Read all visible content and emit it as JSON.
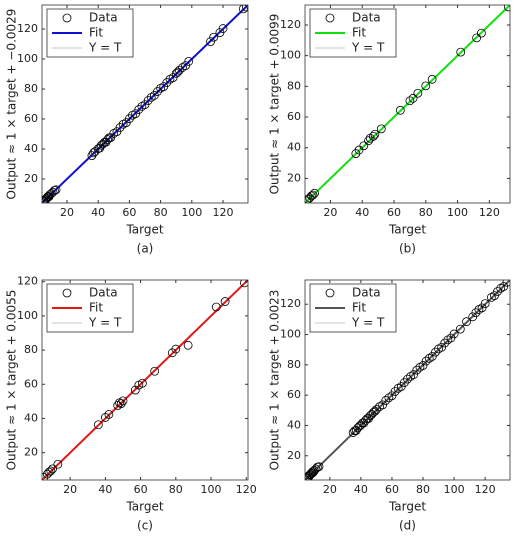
{
  "chart_data": [
    {
      "type": "scatter",
      "caption": "(a)",
      "xlabel": "Target",
      "ylabel": "Output ≈ 1 × target + −0.0029",
      "xlim": [
        4,
        136
      ],
      "ylim": [
        4,
        136
      ],
      "xticks": [
        20,
        40,
        60,
        80,
        100,
        120
      ],
      "yticks": [
        20,
        40,
        60,
        80,
        100,
        120
      ],
      "series": [
        {
          "name": "Data",
          "color": "#000000",
          "x": [
            5,
            5.5,
            6,
            6.5,
            7,
            7.5,
            8,
            8.5,
            9,
            10,
            11,
            12,
            13,
            36,
            37,
            38,
            40,
            41,
            42,
            43,
            44,
            45,
            46,
            47,
            48,
            50,
            52,
            54,
            56,
            58,
            60,
            62,
            64,
            66,
            68,
            70,
            72,
            74,
            76,
            78,
            80,
            82,
            84,
            86,
            88,
            90,
            91,
            92,
            94,
            96,
            98,
            112,
            114,
            118,
            120,
            133,
            135
          ],
          "y": [
            5.3,
            5.2,
            6.4,
            6.3,
            7.2,
            7.9,
            8.4,
            8.2,
            9.5,
            10.3,
            11.2,
            12.4,
            12.8,
            35.6,
            37.4,
            38.3,
            40.2,
            40.6,
            42.5,
            43.3,
            44.4,
            44.6,
            46.3,
            47.5,
            47.6,
            50.4,
            51.6,
            54.3,
            56.5,
            57.6,
            60.2,
            62.5,
            63.6,
            66.3,
            68.4,
            69.6,
            72.3,
            74.4,
            75.7,
            78.3,
            80.5,
            81.6,
            84.3,
            86.5,
            87.6,
            90.4,
            91.3,
            92.5,
            94.3,
            95.6,
            98.4,
            111.6,
            114.5,
            117.6,
            120.3,
            133.4,
            134.6
          ]
        },
        {
          "name": "Fit",
          "color": "#1010d0",
          "slope": 1,
          "intercept": -0.0029
        },
        {
          "name": "Y = T",
          "color": "#c8c8c8"
        }
      ]
    },
    {
      "type": "scatter",
      "caption": "(b)",
      "xlabel": "Target",
      "ylabel": "Output ≈ 1 × target + 0.0099",
      "xlim": [
        4,
        133
      ],
      "ylim": [
        4,
        133
      ],
      "xticks": [
        20,
        40,
        60,
        80,
        100,
        120
      ],
      "yticks": [
        20,
        40,
        60,
        80,
        100,
        120
      ],
      "series": [
        {
          "name": "Data",
          "color": "#000000",
          "x": [
            5,
            6,
            7,
            8,
            9,
            10,
            36,
            38,
            41,
            44,
            45,
            47,
            48,
            52,
            64,
            70,
            72,
            75,
            80,
            84,
            102,
            112,
            115,
            132
          ],
          "y": [
            5.4,
            6.5,
            7.3,
            8.6,
            9.2,
            10.4,
            36.2,
            38.5,
            41.3,
            44.6,
            46.2,
            47.4,
            48.8,
            52.3,
            64.4,
            70.6,
            72.2,
            75.5,
            80.3,
            84.6,
            102.3,
            111.6,
            114.7,
            131.8
          ]
        },
        {
          "name": "Fit",
          "color": "#10e010",
          "slope": 1,
          "intercept": 0.0099
        },
        {
          "name": "Y = T",
          "color": "#c8c8c8"
        }
      ]
    },
    {
      "type": "scatter",
      "caption": "(c)",
      "xlabel": "Target",
      "ylabel": "Output ≈ 1 × target + 0.0055",
      "xlim": [
        4,
        121
      ],
      "ylim": [
        4,
        121
      ],
      "xticks": [
        20,
        40,
        60,
        80,
        100,
        120
      ],
      "yticks": [
        20,
        40,
        60,
        80,
        100,
        120
      ],
      "series": [
        {
          "name": "Data",
          "color": "#000000",
          "x": [
            5,
            7,
            8,
            9,
            10,
            13,
            36,
            40,
            42,
            47,
            48,
            49,
            50,
            57,
            59,
            61,
            68,
            78,
            80,
            87,
            103,
            108,
            119
          ],
          "y": [
            5.5,
            7.4,
            8.6,
            9.3,
            10.5,
            13.2,
            36.3,
            40.6,
            42.4,
            47.6,
            49.2,
            48.7,
            50.3,
            56.6,
            59.5,
            60.6,
            67.6,
            78.4,
            80.6,
            82.8,
            105.2,
            108.4,
            119.3
          ]
        },
        {
          "name": "Fit",
          "color": "#e01818",
          "slope": 1,
          "intercept": 0.0055
        },
        {
          "name": "Y = T",
          "color": "#c8c8c8"
        }
      ]
    },
    {
      "type": "scatter",
      "caption": "(d)",
      "xlabel": "Target",
      "ylabel": "Output ≈ 1 × target + 0.0023",
      "xlim": [
        4,
        136
      ],
      "ylim": [
        4,
        136
      ],
      "xticks": [
        20,
        40,
        60,
        80,
        100,
        120
      ],
      "yticks": [
        20,
        40,
        60,
        80,
        100,
        120
      ],
      "series": [
        {
          "name": "Data",
          "color": "#000000",
          "x": [
            5,
            5.5,
            6,
            6.5,
            7,
            7.5,
            8,
            8.5,
            9,
            9.5,
            10,
            11,
            12,
            13,
            35,
            36,
            37,
            38,
            39,
            40,
            41,
            42,
            43,
            44,
            45,
            46,
            47,
            48,
            49,
            50,
            52,
            54,
            56,
            58,
            60,
            62,
            64,
            66,
            68,
            70,
            72,
            74,
            76,
            78,
            80,
            82,
            84,
            86,
            88,
            90,
            92,
            94,
            96,
            98,
            100,
            104,
            108,
            112,
            114,
            116,
            118,
            120,
            124,
            126,
            128,
            130,
            132,
            134
          ],
          "y": [
            5.4,
            5.3,
            6.5,
            6.2,
            7.3,
            7.8,
            8.5,
            8.3,
            9.6,
            9.3,
            10.4,
            11.3,
            12.5,
            12.8,
            35.3,
            36.5,
            36.7,
            38.4,
            39.5,
            40.3,
            41.6,
            41.7,
            43.4,
            44.5,
            44.7,
            46.5,
            47.3,
            48.6,
            49.4,
            50.5,
            52.4,
            53.6,
            56.5,
            58.3,
            59.6,
            62.4,
            64.5,
            65.7,
            68.3,
            70.6,
            72.4,
            73.6,
            76.5,
            78.4,
            79.6,
            82.5,
            84.3,
            85.6,
            88.4,
            90.5,
            91.6,
            94.4,
            96.5,
            97.7,
            100.4,
            103.6,
            108.5,
            111.7,
            114.4,
            116.5,
            117.6,
            120.4,
            124.5,
            125.7,
            128.4,
            130.5,
            131.7,
            134.5
          ]
        },
        {
          "name": "Fit",
          "color": "#555555",
          "slope": 1,
          "intercept": 0.0023
        },
        {
          "name": "Y = T",
          "color": "#c8c8c8"
        }
      ]
    }
  ]
}
